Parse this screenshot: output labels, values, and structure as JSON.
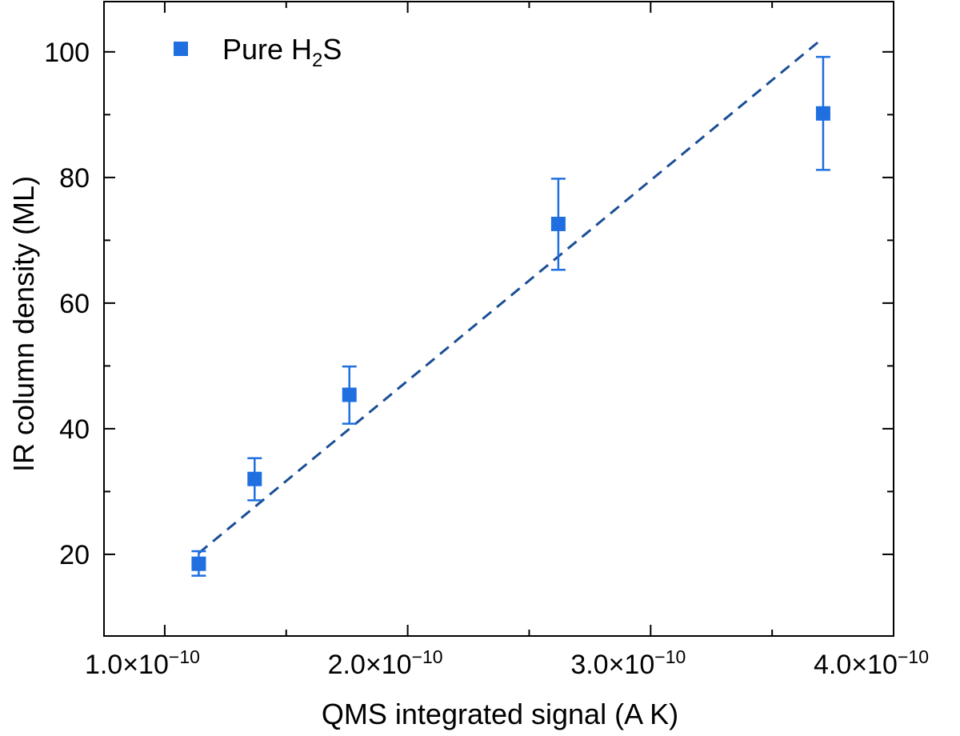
{
  "chart_data": {
    "type": "scatter",
    "title": "",
    "xlabel": "QMS integrated signal (A K)",
    "ylabel": "IR column density (ML)",
    "xlim": [
      7.5e-11,
      4e-10
    ],
    "ylim": [
      7,
      108
    ],
    "grid": false,
    "x_ticks": [
      {
        "value": 1e-10,
        "label": "1.0×10",
        "exp": "−10"
      },
      {
        "value": 2e-10,
        "label": "2.0×10",
        "exp": "−10"
      },
      {
        "value": 3e-10,
        "label": "3.0×10",
        "exp": "−10"
      },
      {
        "value": 4e-10,
        "label": "4.0×10",
        "exp": "−10"
      }
    ],
    "x_minor_ticks": [
      1.5e-10,
      2.5e-10,
      3.5e-10
    ],
    "y_ticks": [
      {
        "value": 20,
        "label": "20"
      },
      {
        "value": 40,
        "label": "40"
      },
      {
        "value": 60,
        "label": "60"
      },
      {
        "value": 80,
        "label": "80"
      },
      {
        "value": 100,
        "label": "100"
      }
    ],
    "y_minor_ticks": [
      30,
      50,
      70,
      90
    ],
    "legend": {
      "position": "top-left",
      "entries": [
        {
          "name": "Pure H",
          "sub": "2",
          "suffix": "S"
        }
      ]
    },
    "series": [
      {
        "name": "Pure H2S",
        "marker": "square",
        "color": "#1f6fe0",
        "points": [
          {
            "x": 1.14e-10,
            "y": 18.5,
            "ylow": 16.6,
            "yhigh": 20.5
          },
          {
            "x": 1.37e-10,
            "y": 32.0,
            "ylow": 28.6,
            "yhigh": 35.3
          },
          {
            "x": 1.76e-10,
            "y": 45.4,
            "ylow": 40.8,
            "yhigh": 49.9
          },
          {
            "x": 2.62e-10,
            "y": 72.6,
            "ylow": 65.3,
            "yhigh": 79.8
          },
          {
            "x": 3.71e-10,
            "y": 90.2,
            "ylow": 81.2,
            "yhigh": 99.2
          }
        ]
      }
    ],
    "fit_line": {
      "style": "dashed",
      "color": "#1a4e96",
      "x": [
        1.14e-10,
        3.71e-10
      ],
      "y": [
        20.2,
        102.2
      ]
    }
  }
}
